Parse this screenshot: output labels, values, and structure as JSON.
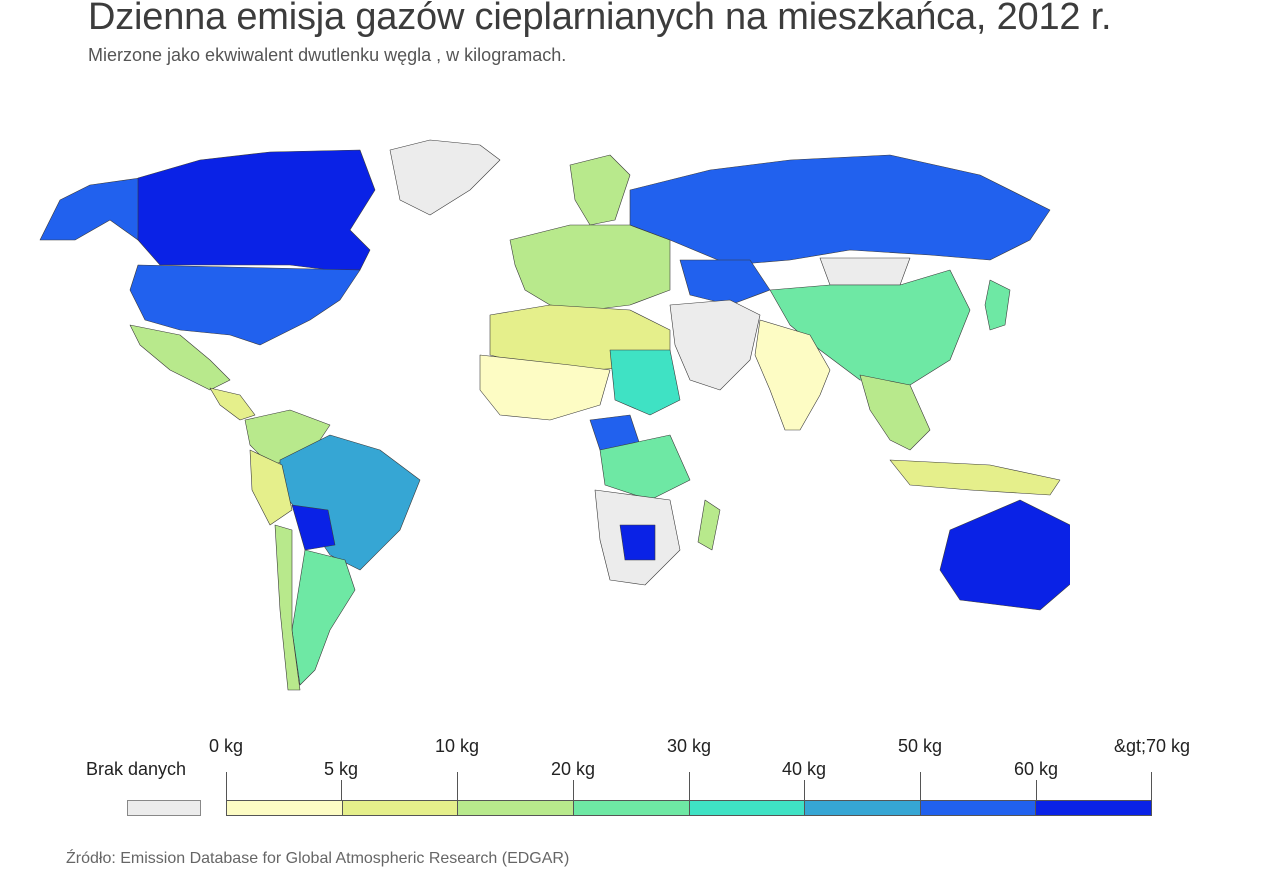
{
  "title": "Dzienna emisja gazów cieplarnianych na mieszkańca, 2012 r.",
  "subtitle": "Mierzone jako ekwiwalent dwutlenku węgla , w kilogramach.",
  "source": "Źródło: Emission Database for Global Atmospheric Research (EDGAR)",
  "legend": {
    "no_data": {
      "label": "Brak danych",
      "color": "#ececec"
    },
    "labels": [
      "0 kg",
      "5 kg",
      "10 kg",
      "20 kg",
      "30 kg",
      "40 kg",
      "50 kg",
      "60 kg",
      "&gt;70 kg"
    ],
    "colors": [
      "#fdfcc4",
      "#e5ef8b",
      "#b8e98c",
      "#6ee8a4",
      "#3fe2c4",
      "#36a6d4",
      "#2161ee",
      "#0a22e6"
    ]
  },
  "regions": {
    "canada": "#0a22e6",
    "alaska": "#2161ee",
    "usa": "#2161ee",
    "greenland": "#ececec",
    "mexico": "#b8e98c",
    "central_america": "#e5ef8b",
    "colombia_venezuela": "#b8e98c",
    "brazil": "#36a6d4",
    "peru": "#e5ef8b",
    "bolivia": "#0a22e6",
    "argentina": "#6ee8a4",
    "chile": "#b8e98c",
    "russia": "#2161ee",
    "kazakhstan": "#2161ee",
    "mongolia": "#ececec",
    "china": "#6ee8a4",
    "india": "#fdfcc4",
    "southeast_asia": "#b8e98c",
    "indonesia": "#e5ef8b",
    "australia": "#0a22e6",
    "new_zealand": "#36a6d4",
    "europe": "#b8e98c",
    "scandinavia": "#b8e98c",
    "middle_east": "#ececec",
    "north_africa": "#e5ef8b",
    "sahel": "#fdfcc4",
    "sudan": "#3fe2c4",
    "central_africa": "#2161ee",
    "congo": "#6ee8a4",
    "southern_africa": "#ececec",
    "botswana": "#0a22e6",
    "madagascar": "#b8e98c",
    "japan": "#6ee8a4"
  }
}
